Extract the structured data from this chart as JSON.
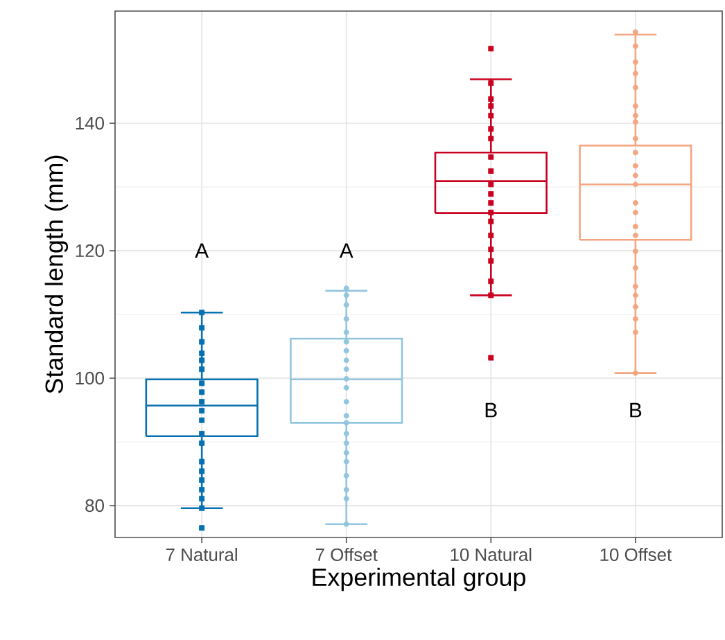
{
  "chart_data": {
    "type": "box",
    "xlabel": "Experimental group",
    "ylabel": "Standard length (mm)",
    "categories": [
      "7 Natural",
      "7 Offset",
      "10 Natural",
      "10 Offset"
    ],
    "colors": [
      "#0571b0",
      "#92c5de",
      "#ca0020",
      "#f4a582"
    ],
    "boxes": [
      {
        "low": 79.6,
        "q1": 90.9,
        "median": 95.7,
        "q3": 99.8,
        "high": 110.3
      },
      {
        "low": 77.1,
        "q1": 93.0,
        "median": 99.8,
        "q3": 106.2,
        "high": 113.7
      },
      {
        "low": 113.0,
        "q1": 125.9,
        "median": 130.9,
        "q3": 135.4,
        "high": 146.9
      },
      {
        "low": 100.8,
        "q1": 121.7,
        "median": 130.4,
        "q3": 136.5,
        "high": 153.9
      }
    ],
    "series": [
      {
        "type": "scatter",
        "color": "#0571b0",
        "marker": "square",
        "x": [
          "7 Natural",
          "7 Natural",
          "7 Natural",
          "7 Natural",
          "7 Natural",
          "7 Natural",
          "7 Natural",
          "7 Natural",
          "7 Natural",
          "7 Natural",
          "7 Natural",
          "7 Natural",
          "7 Natural",
          "7 Natural",
          "7 Natural",
          "7 Natural",
          "7 Natural",
          "7 Natural",
          "7 Natural",
          "7 Natural"
        ],
        "values": [
          110.3,
          107.9,
          105.7,
          103.9,
          102.8,
          101.4,
          99.2,
          97.8,
          96.3,
          94.9,
          93.4,
          91.3,
          89.8,
          86.9,
          85.4,
          84.0,
          82.5,
          81.1,
          79.6,
          76.5
        ]
      },
      {
        "type": "scatter",
        "color": "#92c5de",
        "marker": "circle",
        "x": [
          "7 Offset",
          "7 Offset",
          "7 Offset",
          "7 Offset",
          "7 Offset",
          "7 Offset",
          "7 Offset",
          "7 Offset",
          "7 Offset",
          "7 Offset",
          "7 Offset",
          "7 Offset",
          "7 Offset",
          "7 Offset",
          "7 Offset",
          "7 Offset",
          "7 Offset",
          "7 Offset",
          "7 Offset",
          "7 Offset",
          "7 Offset",
          "7 Offset"
        ],
        "values": [
          114.1,
          113.0,
          111.5,
          109.3,
          107.2,
          105.7,
          104.3,
          102.8,
          101.4,
          99.9,
          98.5,
          96.3,
          94.1,
          93.0,
          91.3,
          89.8,
          88.3,
          86.9,
          84.7,
          82.5,
          81.1,
          77.1
        ]
      },
      {
        "type": "scatter",
        "color": "#ca0020",
        "marker": "square",
        "x": [
          "10 Natural",
          "10 Natural",
          "10 Natural",
          "10 Natural",
          "10 Natural",
          "10 Natural",
          "10 Natural",
          "10 Natural",
          "10 Natural",
          "10 Natural",
          "10 Natural",
          "10 Natural",
          "10 Natural",
          "10 Natural",
          "10 Natural",
          "10 Natural",
          "10 Natural",
          "10 Natural",
          "10 Natural",
          "10 Natural"
        ],
        "values": [
          151.7,
          146.3,
          143.8,
          142.7,
          141.2,
          139.1,
          137.6,
          134.7,
          132.5,
          130.4,
          128.9,
          127.5,
          126.0,
          124.6,
          122.4,
          120.2,
          118.4,
          115.2,
          113.0,
          103.2
        ]
      },
      {
        "type": "scatter",
        "color": "#f4a582",
        "marker": "circle",
        "x": [
          "10 Offset",
          "10 Offset",
          "10 Offset",
          "10 Offset",
          "10 Offset",
          "10 Offset",
          "10 Offset",
          "10 Offset",
          "10 Offset",
          "10 Offset",
          "10 Offset",
          "10 Offset",
          "10 Offset",
          "10 Offset",
          "10 Offset",
          "10 Offset",
          "10 Offset",
          "10 Offset",
          "10 Offset",
          "10 Offset",
          "10 Offset",
          "10 Offset",
          "10 Offset",
          "10 Offset",
          "10 Offset"
        ],
        "values": [
          154.3,
          152.1,
          149.6,
          147.8,
          145.6,
          142.7,
          141.2,
          140.2,
          137.6,
          135.4,
          133.3,
          131.8,
          130.4,
          127.5,
          126.0,
          123.8,
          122.4,
          119.9,
          117.3,
          114.4,
          113.0,
          111.2,
          109.3,
          107.2,
          100.8
        ]
      }
    ],
    "annotations": [
      "A",
      "A",
      "B",
      "B"
    ],
    "ylim": [
      75,
      157.6
    ],
    "yticks": [
      80,
      100,
      120,
      140
    ],
    "grid": true
  }
}
